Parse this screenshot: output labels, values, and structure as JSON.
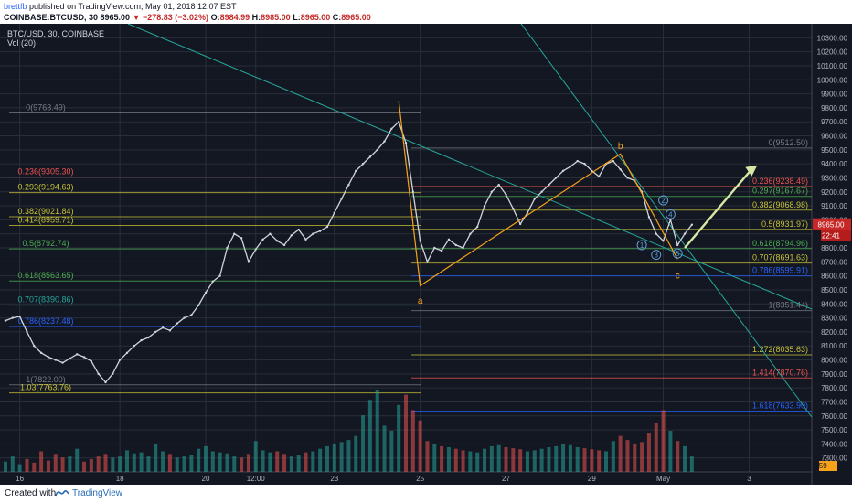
{
  "header": {
    "author": "brettfb",
    "published": "published on TradingView.com, May 01, 2018 12:07 EST",
    "symbol": "COINBASE:BTCUSD, 30",
    "last": "8965.00",
    "change": "▼ −278.83 (−3.02%)",
    "open_label": "O:",
    "open": "8984.99",
    "high_label": "H:",
    "high": "8985.00",
    "low_label": "L:",
    "low": "8965.00",
    "close_label": "C:",
    "close": "8965.00"
  },
  "legend": {
    "symbol": "BTC/USD, 30, COINBASE",
    "volume": "Vol (20)"
  },
  "footer": {
    "created_with": "Created with",
    "brand": "TradingView"
  },
  "colors": {
    "background": "#131722",
    "grid": "#2a2e39",
    "up": "#d1d4dc",
    "down": "#d1d4dc",
    "orange": "#f7a21b",
    "teal": "#26a69a",
    "fib_red": "#ef5350",
    "fib_yellow": "#c9c337",
    "fib_green": "#4caf50",
    "fib_blue": "#2962ff",
    "fib_purple": "#9c27b0",
    "arrow": "#d6e8a6",
    "price_badge": "#c62828"
  },
  "chart_data": {
    "type": "line",
    "title": "BTC/USD, 30, COINBASE",
    "ylim": [
      7200,
      10400
    ],
    "y_ticks": [
      "10300.00",
      "10200.00",
      "10100.00",
      "10000.00",
      "9900.00",
      "9800.00",
      "9700.00",
      "9600.00",
      "9500.00",
      "9400.00",
      "9300.00",
      "9200.00",
      "9100.00",
      "9000.00",
      "8900.00",
      "8800.00",
      "8700.00",
      "8600.00",
      "8500.00",
      "8400.00",
      "8300.00",
      "8200.00",
      "8100.00",
      "8000.00",
      "7900.00",
      "7800.00",
      "7700.00",
      "7600.00",
      "7500.00",
      "7400.00",
      "7300.00"
    ],
    "x_ticks": [
      "16",
      "18",
      "20",
      "12:00",
      "23",
      "25",
      "27",
      "29",
      "May",
      "3"
    ],
    "x_tick_index": [
      2,
      16,
      28,
      35,
      46,
      58,
      70,
      82,
      92,
      104
    ],
    "last_price_label": "8965.00",
    "last_time_label": "22:41",
    "volume_label": "159",
    "series": [
      {
        "values": [
          8280,
          8300,
          8310,
          8200,
          8100,
          8050,
          8020,
          8000,
          7980,
          8010,
          8040,
          8020,
          7990,
          7900,
          7840,
          7900,
          8000,
          8050,
          8100,
          8140,
          8160,
          8200,
          8230,
          8210,
          8260,
          8300,
          8320,
          8390,
          8480,
          8560,
          8600,
          8800,
          8900,
          8870,
          8700,
          8790,
          8860,
          8900,
          8850,
          8820,
          8890,
          8930,
          8860,
          8900,
          8920,
          8950,
          9050,
          9150,
          9250,
          9350,
          9400,
          9450,
          9500,
          9560,
          9650,
          9700,
          9550,
          9200,
          8850,
          8700,
          8800,
          8780,
          8860,
          8820,
          8800,
          8900,
          8950,
          9100,
          9200,
          9250,
          9180,
          9080,
          8970,
          9050,
          9150,
          9200,
          9250,
          9300,
          9350,
          9380,
          9420,
          9400,
          9350,
          9310,
          9400,
          9420,
          9360,
          9300,
          9280,
          9200,
          9020,
          8900,
          8850,
          9000,
          8820,
          8900,
          8965
        ]
      }
    ],
    "volume": [
      20,
      30,
      15,
      25,
      18,
      40,
      22,
      35,
      28,
      30,
      45,
      20,
      25,
      30,
      35,
      28,
      30,
      42,
      36,
      38,
      30,
      55,
      40,
      35,
      28,
      30,
      32,
      45,
      50,
      40,
      38,
      36,
      30,
      28,
      35,
      60,
      42,
      38,
      40,
      35,
      30,
      33,
      38,
      40,
      45,
      50,
      55,
      58,
      62,
      70,
      110,
      140,
      160,
      90,
      80,
      130,
      150,
      120,
      100,
      60,
      55,
      50,
      48,
      45,
      42,
      40,
      38,
      45,
      50,
      52,
      48,
      46,
      44,
      40,
      42,
      45,
      48,
      50,
      55,
      52,
      48,
      46,
      44,
      42,
      40,
      60,
      70,
      62,
      55,
      58,
      75,
      95,
      120,
      80,
      60,
      50,
      30
    ],
    "annotations": [
      {
        "text": "0(9763.49)",
        "price": 9763.49,
        "color": "#787b86",
        "side": "left"
      },
      {
        "text": "0.236(9305.30)",
        "price": 9305.3,
        "color": "#ef5350",
        "side": "left"
      },
      {
        "text": "0.293(9194.63)",
        "price": 9194.63,
        "color": "#c9c337",
        "side": "left"
      },
      {
        "text": "0.382(9021.84)",
        "price": 9021.84,
        "color": "#c9c337",
        "side": "left"
      },
      {
        "text": "0.414(8959.71)",
        "price": 8959.71,
        "color": "#c9c337",
        "side": "left"
      },
      {
        "text": "0.5(8792.74)",
        "price": 8792.74,
        "color": "#4caf50",
        "side": "left"
      },
      {
        "text": "0.618(8563.65)",
        "price": 8563.65,
        "color": "#4caf50",
        "side": "left"
      },
      {
        "text": "0.707(8390.86)",
        "price": 8390.86,
        "color": "#26a69a",
        "side": "left"
      },
      {
        "text": "0.786(8237.48)",
        "price": 8237.48,
        "color": "#2962ff",
        "side": "left"
      },
      {
        "text": "1(7822.00)",
        "price": 7822.0,
        "color": "#787b86",
        "side": "left"
      },
      {
        "text": "1.03(7763.76)",
        "price": 7763.76,
        "color": "#c9c337",
        "side": "left"
      },
      {
        "text": "0(9512.50)",
        "price": 9512.5,
        "color": "#787b86",
        "side": "right"
      },
      {
        "text": "0.236(9238.49)",
        "price": 9238.49,
        "color": "#ef5350",
        "side": "right"
      },
      {
        "text": "0.297(9167.67)",
        "price": 9167.67,
        "color": "#4caf50",
        "side": "right"
      },
      {
        "text": "0.382(9068.98)",
        "price": 9068.98,
        "color": "#c9c337",
        "side": "right"
      },
      {
        "text": "0.5(8931.97)",
        "price": 8931.97,
        "color": "#c9c337",
        "side": "right"
      },
      {
        "text": "0.618(8794.96)",
        "price": 8794.96,
        "color": "#4caf50",
        "side": "right"
      },
      {
        "text": "0.707(8691.63)",
        "price": 8691.63,
        "color": "#c9c337",
        "side": "right"
      },
      {
        "text": "0.786(8599.91)",
        "price": 8599.91,
        "color": "#2962ff",
        "side": "right"
      },
      {
        "text": "1(8351.44)",
        "price": 8351.44,
        "color": "#787b86",
        "side": "right"
      },
      {
        "text": "1.272(8035.63)",
        "price": 8035.63,
        "color": "#c9c337",
        "side": "right"
      },
      {
        "text": "1.414(7870.76)",
        "price": 7870.76,
        "color": "#ef5350",
        "side": "right"
      },
      {
        "text": "1.618(7633.90)",
        "price": 7633.9,
        "color": "#2962ff",
        "side": "right"
      }
    ],
    "wave_labels": [
      {
        "text": "a",
        "index": 58,
        "price": 8480,
        "color": "#f7a21b"
      },
      {
        "text": "b",
        "index": 86,
        "price": 9480,
        "color": "#f7a21b"
      },
      {
        "text": "c",
        "index": 94,
        "price": 8660,
        "color": "#f7a21b"
      },
      {
        "text": "1",
        "index": 89,
        "price": 8820,
        "color": "#5b9bd5"
      },
      {
        "text": "2",
        "index": 92,
        "price": 9140,
        "color": "#5b9bd5"
      },
      {
        "text": "3",
        "index": 91,
        "price": 8750,
        "color": "#5b9bd5"
      },
      {
        "text": "4",
        "index": 93,
        "price": 9040,
        "color": "#5b9bd5"
      },
      {
        "text": "5",
        "index": 94,
        "price": 8760,
        "color": "#5b9bd5"
      }
    ]
  }
}
